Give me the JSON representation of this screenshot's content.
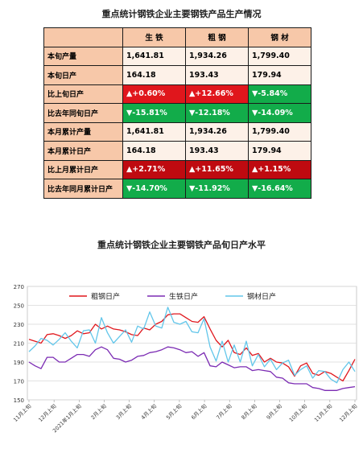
{
  "table": {
    "title": "重点统计钢铁企业主要钢铁产品生产情况",
    "headers": [
      "生 铁",
      "粗 钢",
      "钢 材"
    ],
    "rows": [
      {
        "label": "本旬产量",
        "cells": [
          "1,641.81",
          "1,934.26",
          "1,799.40"
        ],
        "styles": [
          "plain",
          "plain",
          "plain"
        ]
      },
      {
        "label": "本旬日产",
        "cells": [
          "164.18",
          "193.43",
          "179.94"
        ],
        "styles": [
          "plain",
          "plain",
          "plain"
        ]
      },
      {
        "label": "比上旬日产",
        "cells": [
          "▲+0.60%",
          "▲+12.66%",
          "▼-5.84%"
        ],
        "styles": [
          "up",
          "up",
          "dn"
        ]
      },
      {
        "label": "比去年同旬日产",
        "cells": [
          "▼-15.81%",
          "▼-12.18%",
          "▼-14.09%"
        ],
        "styles": [
          "dn",
          "dn",
          "dn"
        ]
      },
      {
        "label": "本月累计产量",
        "cells": [
          "1,641.81",
          "1,934.26",
          "1,799.40"
        ],
        "styles": [
          "plain",
          "plain",
          "plain"
        ]
      },
      {
        "label": "本月累计日产",
        "cells": [
          "164.18",
          "193.43",
          "179.94"
        ],
        "styles": [
          "plain",
          "plain",
          "plain"
        ]
      },
      {
        "label": "比上月累计日产",
        "cells": [
          "▲+2.71%",
          "▲+11.65%",
          "▲+1.15%"
        ],
        "styles": [
          "upd",
          "upd",
          "upd"
        ]
      },
      {
        "label": "比去年同月累计日产",
        "cells": [
          "▼-14.70%",
          "▼-11.92%",
          "▼-16.64%"
        ],
        "styles": [
          "dn",
          "dn",
          "dn"
        ]
      }
    ]
  },
  "chart_data": {
    "type": "line",
    "title": "重点统计钢铁企业主要钢铁产品旬日产水平",
    "xlabel": "",
    "ylabel": "",
    "ylim": [
      150,
      270
    ],
    "yticks": [
      150,
      170,
      190,
      210,
      230,
      250,
      270
    ],
    "grid": true,
    "legend_position": "top-left",
    "x_tick_labels": [
      "11月上旬",
      "12月上旬",
      "2021年1月上旬",
      "2月上旬",
      "3月上旬",
      "4月上旬",
      "5月上旬",
      "6月上旬",
      "7月上旬",
      "8月上旬",
      "9月上旬",
      "10月上旬",
      "11月上旬",
      "12月上旬"
    ],
    "series": [
      {
        "name": "粗钢日产",
        "color": "#e0161c",
        "values": [
          214,
          212,
          210,
          219,
          220,
          218,
          215,
          218,
          223,
          220,
          221,
          230,
          225,
          228,
          225,
          224,
          222,
          219,
          218,
          226,
          224,
          230,
          233,
          240,
          241,
          241,
          237,
          233,
          232,
          238,
          225,
          213,
          206,
          213,
          200,
          198,
          205,
          197,
          199,
          190,
          194,
          190,
          189,
          185,
          175,
          186,
          189,
          178,
          176,
          180,
          178,
          174,
          170,
          181,
          193
        ]
      },
      {
        "name": "生铁日产",
        "color": "#7b2bb3",
        "values": [
          190,
          186,
          183,
          195,
          195,
          190,
          190,
          194,
          198,
          198,
          196,
          203,
          206,
          203,
          194,
          193,
          190,
          192,
          196,
          197,
          200,
          201,
          203,
          206,
          205,
          203,
          200,
          201,
          196,
          200,
          186,
          185,
          190,
          187,
          184,
          185,
          185,
          181,
          182,
          181,
          180,
          174,
          173,
          168,
          167,
          167,
          167,
          163,
          162,
          160,
          160,
          160,
          162,
          163,
          164
        ]
      },
      {
        "name": "钢材日产",
        "color": "#62c6ea",
        "values": [
          201,
          207,
          215,
          213,
          208,
          214,
          221,
          212,
          205,
          223,
          224,
          210,
          237,
          221,
          210,
          217,
          224,
          211,
          228,
          225,
          243,
          228,
          226,
          248,
          232,
          230,
          233,
          222,
          221,
          236,
          206,
          191,
          212,
          190,
          208,
          190,
          212,
          186,
          198,
          185,
          193,
          182,
          189,
          192,
          176,
          182,
          186,
          173,
          181,
          180,
          172,
          168,
          182,
          190,
          180
        ]
      }
    ]
  }
}
